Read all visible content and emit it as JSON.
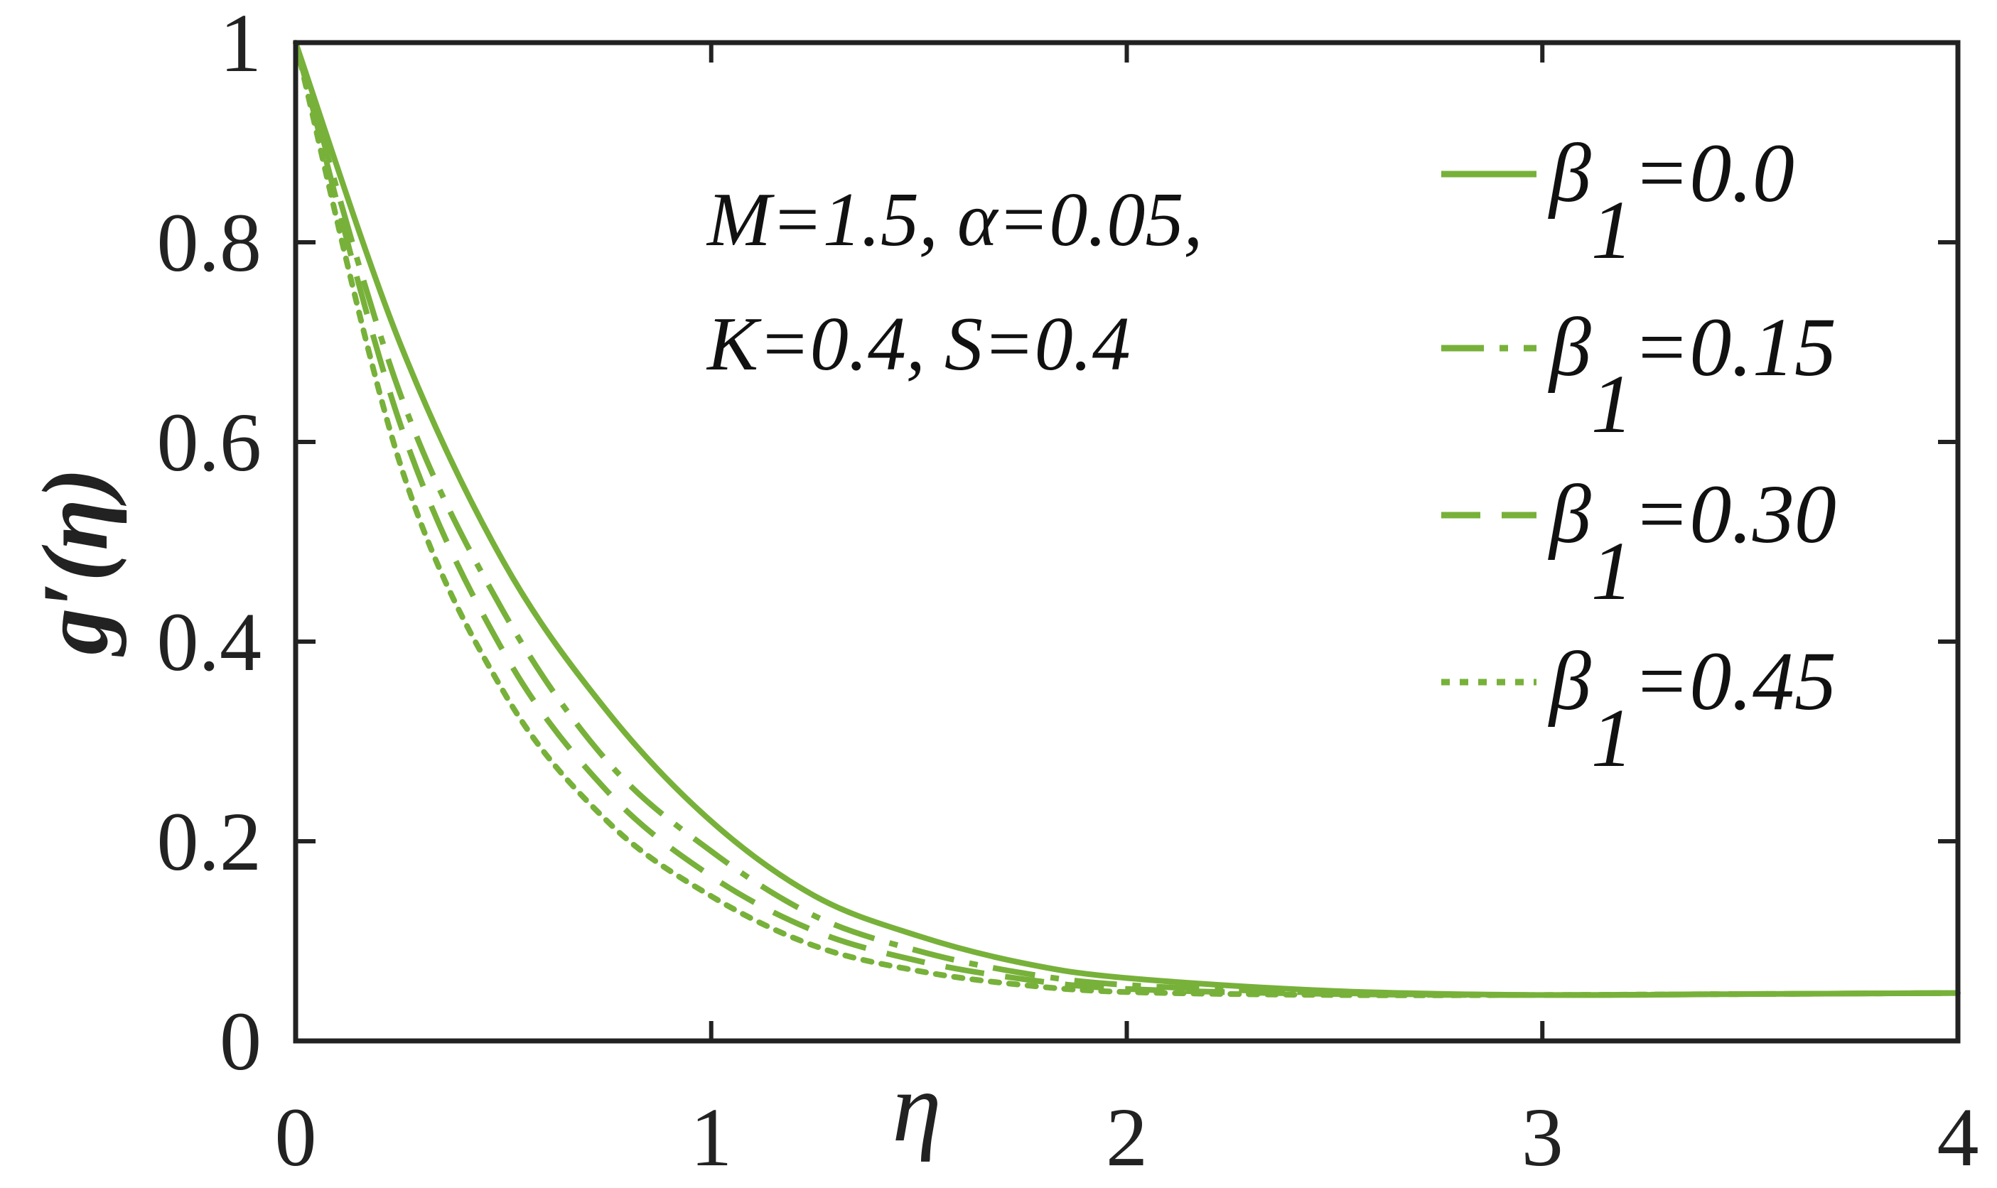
{
  "chart_data": {
    "type": "line",
    "xlabel": "η",
    "ylabel": "g′(η)",
    "xlim": [
      0,
      4
    ],
    "ylim": [
      0,
      1
    ],
    "xticks": [
      "0",
      "1",
      "2",
      "3",
      "4"
    ],
    "yticks": [
      "0",
      "0.2",
      "0.4",
      "0.6",
      "0.8",
      "1"
    ],
    "grid": false,
    "legend_position": "top-right",
    "annotations": [
      "M=1.5, α=0.05,",
      "K=0.4, S=0.4"
    ],
    "line_color": "#77B13A",
    "series": [
      {
        "name": "β1=0.0",
        "label_main": "β",
        "label_sub": "1",
        "label_value": "=0.0",
        "style": "solid",
        "x": [
          0,
          0.25,
          0.5,
          0.75,
          1.0,
          1.25,
          1.5,
          1.75,
          2.0,
          2.5,
          3.0,
          3.5,
          4.0
        ],
        "y": [
          1.0,
          0.7,
          0.48,
          0.33,
          0.22,
          0.145,
          0.105,
          0.078,
          0.063,
          0.05,
          0.046,
          0.047,
          0.048
        ]
      },
      {
        "name": "β1=0.15",
        "label_main": "β",
        "label_sub": "1",
        "label_value": "=0.15",
        "style": "dashdot",
        "x": [
          0,
          0.25,
          0.5,
          0.75,
          1.0,
          1.25,
          1.5,
          1.75,
          2.0,
          2.5,
          3.0,
          3.5,
          4.0
        ],
        "y": [
          1.0,
          0.65,
          0.43,
          0.28,
          0.19,
          0.125,
          0.09,
          0.068,
          0.056,
          0.048,
          0.046,
          0.047,
          0.048
        ]
      },
      {
        "name": "β1=0.30",
        "label_main": "β",
        "label_sub": "1",
        "label_value": "=0.30",
        "style": "dashed",
        "x": [
          0,
          0.25,
          0.5,
          0.75,
          1.0,
          1.25,
          1.5,
          1.75,
          2.0,
          2.5,
          3.0,
          3.5,
          4.0
        ],
        "y": [
          1.0,
          0.62,
          0.39,
          0.25,
          0.165,
          0.11,
          0.08,
          0.062,
          0.052,
          0.047,
          0.046,
          0.047,
          0.048
        ]
      },
      {
        "name": "β1=0.45",
        "label_main": "β",
        "label_sub": "1",
        "label_value": "=0.45",
        "style": "dotted",
        "x": [
          0,
          0.25,
          0.5,
          0.75,
          1.0,
          1.25,
          1.5,
          1.75,
          2.0,
          2.5,
          3.0,
          3.5,
          4.0
        ],
        "y": [
          1.0,
          0.58,
          0.35,
          0.22,
          0.145,
          0.095,
          0.07,
          0.056,
          0.049,
          0.046,
          0.046,
          0.047,
          0.048
        ]
      }
    ]
  }
}
